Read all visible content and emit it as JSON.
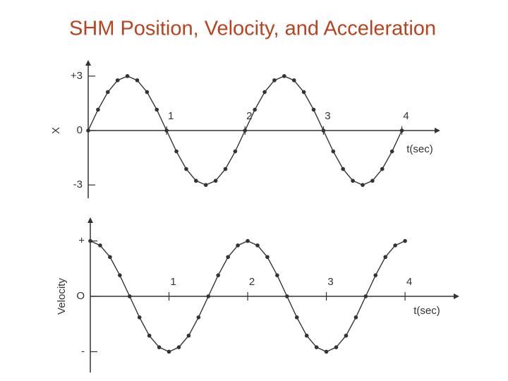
{
  "title": "SHM Position, Velocity, and Acceleration",
  "chart_data": [
    {
      "type": "line",
      "y_label": "X",
      "x_label": "t(sec)",
      "x": [
        0,
        0.125,
        0.25,
        0.375,
        0.5,
        0.625,
        0.75,
        0.875,
        1,
        1.125,
        1.25,
        1.375,
        1.5,
        1.625,
        1.75,
        1.875,
        2,
        2.125,
        2.25,
        2.375,
        2.5,
        2.625,
        2.75,
        2.875,
        3,
        3.125,
        3.25,
        3.375,
        3.5,
        3.625,
        3.75,
        3.875,
        4
      ],
      "values": [
        0,
        1.15,
        2.12,
        2.77,
        3,
        2.77,
        2.12,
        1.15,
        0,
        -1.15,
        -2.12,
        -2.77,
        -3,
        -2.77,
        -2.12,
        -1.15,
        0,
        1.15,
        2.12,
        2.77,
        3,
        2.77,
        2.12,
        1.15,
        0,
        -1.15,
        -2.12,
        -2.77,
        -3,
        -2.77,
        -2.12,
        -1.15,
        0
      ],
      "color": "#333333",
      "xlim": [
        0,
        4.4
      ],
      "ylim": [
        -3.5,
        3.5
      ],
      "xticks": [
        1,
        2,
        3,
        4
      ],
      "yticks": [
        {
          "value": 3,
          "label": "+3"
        },
        0,
        {
          "value": -3,
          "label": "-3"
        }
      ]
    },
    {
      "type": "line",
      "y_label": "Velocity",
      "x_label": "t(sec)",
      "x": [
        0,
        0.125,
        0.25,
        0.375,
        0.5,
        0.625,
        0.75,
        0.875,
        1,
        1.125,
        1.25,
        1.375,
        1.5,
        1.625,
        1.75,
        1.875,
        2,
        2.125,
        2.25,
        2.375,
        2.5,
        2.625,
        2.75,
        2.875,
        3,
        3.125,
        3.25,
        3.375,
        3.5,
        3.625,
        3.75,
        3.875,
        4
      ],
      "values": [
        1,
        0.92,
        0.71,
        0.38,
        0,
        -0.38,
        -0.71,
        -0.92,
        -1,
        -0.92,
        -0.71,
        -0.38,
        0,
        0.38,
        0.71,
        0.92,
        1,
        0.92,
        0.71,
        0.38,
        0,
        -0.38,
        -0.71,
        -0.92,
        -1,
        -0.92,
        -0.71,
        -0.38,
        0,
        0.38,
        0.71,
        0.92,
        1
      ],
      "color": "#333333",
      "xlim": [
        0,
        4.6
      ],
      "ylim": [
        -1.3,
        1.3
      ],
      "xticks": [
        1,
        2,
        3,
        4
      ],
      "yticks": [
        {
          "value": 1,
          "label": "+"
        },
        {
          "value": 0,
          "label": "O"
        },
        {
          "value": -1,
          "label": "-"
        }
      ]
    }
  ]
}
